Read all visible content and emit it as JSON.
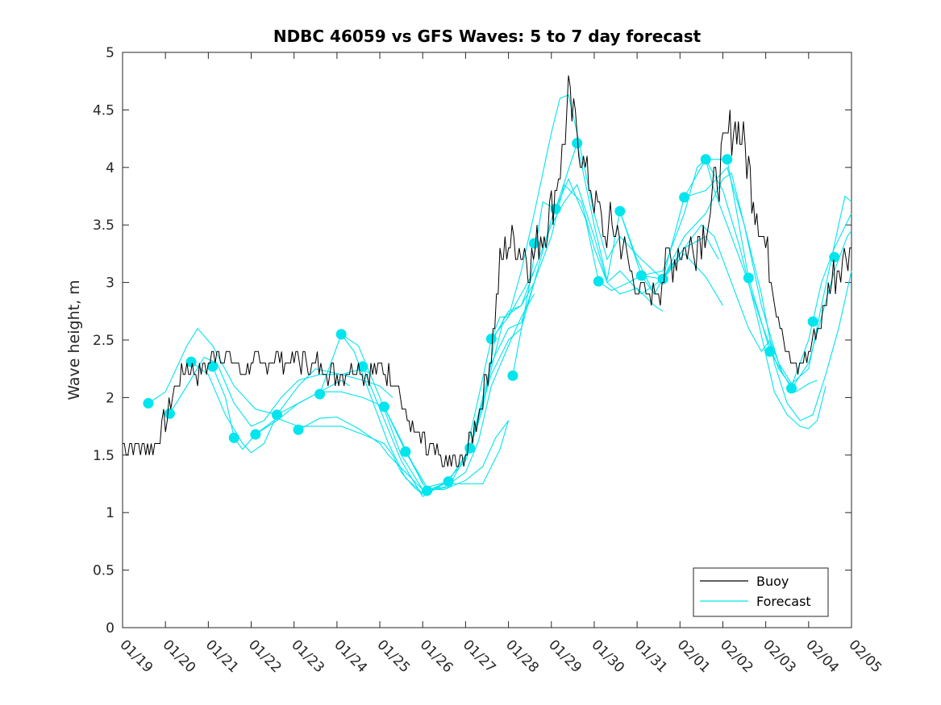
{
  "chart_data": {
    "type": "line",
    "title": "NDBC 46059 vs GFS Waves: 5 to 7 day forecast",
    "xlabel": "",
    "ylabel": "Wave height, m",
    "xlim": [
      0,
      17
    ],
    "ylim": [
      0,
      5
    ],
    "x_tick_labels": [
      "01/19",
      "01/20",
      "01/21",
      "01/22",
      "01/23",
      "01/24",
      "01/25",
      "01/26",
      "01/27",
      "01/28",
      "01/29",
      "01/30",
      "01/31",
      "02/01",
      "02/02",
      "02/03",
      "02/04",
      "02/05"
    ],
    "y_tick_labels": [
      "0",
      "0.5",
      "1",
      "1.5",
      "2",
      "2.5",
      "3",
      "3.5",
      "4",
      "4.5",
      "5"
    ],
    "legend": {
      "location": "bottom-right",
      "entries": [
        "Buoy",
        "Forecast"
      ]
    },
    "colors": {
      "buoy": "#000000",
      "forecast": "#00e5ee"
    },
    "x_units": "days since 01/19 00:00",
    "buoy_series": [
      [
        0,
        1.6
      ],
      [
        0.25,
        1.55
      ],
      [
        0.5,
        1.6
      ],
      [
        0.75,
        1.55
      ],
      [
        1.0,
        1.8
      ],
      [
        1.25,
        2.1
      ],
      [
        1.5,
        2.25
      ],
      [
        1.75,
        2.2
      ],
      [
        2.0,
        2.3
      ],
      [
        2.2,
        2.45
      ],
      [
        2.5,
        2.3
      ],
      [
        2.75,
        2.25
      ],
      [
        3.0,
        2.3
      ],
      [
        3.25,
        2.25
      ],
      [
        3.5,
        2.35
      ],
      [
        3.75,
        2.3
      ],
      [
        4.0,
        2.35
      ],
      [
        4.25,
        2.3
      ],
      [
        4.5,
        2.3
      ],
      [
        4.75,
        2.25
      ],
      [
        5.0,
        2.2
      ],
      [
        5.25,
        2.25
      ],
      [
        5.5,
        2.25
      ],
      [
        5.75,
        2.2
      ],
      [
        6.0,
        2.25
      ],
      [
        6.25,
        2.2
      ],
      [
        6.4,
        2.15
      ],
      [
        6.6,
        1.85
      ],
      [
        6.8,
        1.7
      ],
      [
        7.0,
        1.6
      ],
      [
        7.25,
        1.5
      ],
      [
        7.5,
        1.45
      ],
      [
        7.75,
        1.4
      ],
      [
        8.0,
        1.5
      ],
      [
        8.25,
        1.8
      ],
      [
        8.4,
        2.0
      ],
      [
        8.6,
        2.4
      ],
      [
        8.8,
        3.1
      ],
      [
        9.0,
        3.4
      ],
      [
        9.25,
        3.3
      ],
      [
        9.5,
        3.2
      ],
      [
        9.75,
        3.4
      ],
      [
        10.0,
        3.6
      ],
      [
        10.25,
        4.1
      ],
      [
        10.4,
        4.6
      ],
      [
        10.6,
        4.3
      ],
      [
        10.75,
        4.05
      ],
      [
        11.0,
        3.7
      ],
      [
        11.25,
        3.4
      ],
      [
        11.5,
        3.5
      ],
      [
        11.75,
        3.2
      ],
      [
        12.0,
        2.95
      ],
      [
        12.25,
        2.85
      ],
      [
        12.5,
        3.0
      ],
      [
        12.75,
        3.2
      ],
      [
        13.0,
        3.3
      ],
      [
        13.25,
        3.3
      ],
      [
        13.5,
        3.4
      ],
      [
        13.75,
        3.7
      ],
      [
        14.0,
        4.1
      ],
      [
        14.25,
        4.4
      ],
      [
        14.4,
        4.3
      ],
      [
        14.6,
        4.0
      ],
      [
        14.75,
        3.7
      ],
      [
        15.0,
        3.3
      ],
      [
        15.25,
        2.8
      ],
      [
        15.5,
        2.4
      ],
      [
        15.75,
        2.2
      ],
      [
        16.0,
        2.4
      ],
      [
        16.25,
        2.6
      ],
      [
        16.5,
        3.0
      ],
      [
        16.75,
        3.2
      ],
      [
        17.0,
        3.3
      ]
    ],
    "forecast_markers": [
      [
        0.6,
        1.95
      ],
      [
        1.1,
        1.86
      ],
      [
        1.6,
        2.31
      ],
      [
        2.1,
        2.27
      ],
      [
        2.6,
        1.65
      ],
      [
        3.1,
        1.68
      ],
      [
        3.6,
        1.85
      ],
      [
        4.1,
        1.72
      ],
      [
        4.6,
        2.03
      ],
      [
        5.1,
        2.55
      ],
      [
        5.6,
        2.27
      ],
      [
        6.1,
        1.92
      ],
      [
        6.6,
        1.53
      ],
      [
        7.1,
        1.19
      ],
      [
        7.6,
        1.27
      ],
      [
        8.1,
        1.56
      ],
      [
        8.6,
        2.51
      ],
      [
        9.1,
        2.19
      ],
      [
        9.6,
        3.34
      ],
      [
        10.1,
        3.64
      ],
      [
        10.6,
        4.21
      ],
      [
        11.1,
        3.01
      ],
      [
        11.6,
        3.62
      ],
      [
        12.1,
        3.06
      ],
      [
        12.6,
        3.03
      ],
      [
        13.1,
        3.74
      ],
      [
        13.6,
        4.07
      ],
      [
        14.1,
        4.07
      ],
      [
        14.6,
        3.04
      ],
      [
        15.1,
        2.4
      ],
      [
        15.6,
        2.08
      ],
      [
        16.1,
        2.66
      ],
      [
        16.6,
        3.22
      ]
    ],
    "forecast_series": [
      [
        [
          0.6,
          1.95
        ],
        [
          1.0,
          2.05
        ],
        [
          1.5,
          2.45
        ],
        [
          1.75,
          2.6
        ],
        [
          2.1,
          2.45
        ],
        [
          2.6,
          2.1
        ],
        [
          3.1,
          1.9
        ],
        [
          3.6,
          1.85
        ],
        [
          4.1,
          1.95
        ],
        [
          4.6,
          2.05
        ],
        [
          5.1,
          2.15
        ],
        [
          5.3,
          2.1
        ]
      ],
      [
        [
          1.1,
          1.86
        ],
        [
          1.5,
          2.1
        ],
        [
          1.9,
          2.35
        ],
        [
          2.2,
          2.3
        ],
        [
          2.6,
          1.95
        ],
        [
          3.0,
          1.75
        ],
        [
          3.3,
          1.8
        ],
        [
          3.7,
          2.0
        ],
        [
          4.1,
          2.15
        ],
        [
          4.6,
          2.2
        ],
        [
          5.1,
          2.2
        ],
        [
          5.6,
          2.25
        ],
        [
          5.8,
          2.2
        ]
      ],
      [
        [
          1.6,
          2.31
        ],
        [
          2.0,
          2.2
        ],
        [
          2.4,
          1.85
        ],
        [
          2.8,
          1.6
        ],
        [
          3.0,
          1.52
        ],
        [
          3.3,
          1.6
        ],
        [
          3.6,
          1.85
        ],
        [
          4.1,
          2.1
        ],
        [
          4.5,
          2.25
        ],
        [
          5.1,
          2.2
        ],
        [
          5.6,
          2.15
        ],
        [
          6.0,
          2.1
        ],
        [
          6.3,
          2.0
        ]
      ],
      [
        [
          2.1,
          2.27
        ],
        [
          2.4,
          2.0
        ],
        [
          2.6,
          1.65
        ],
        [
          2.8,
          1.55
        ],
        [
          3.1,
          1.68
        ],
        [
          3.6,
          1.8
        ],
        [
          4.1,
          1.95
        ],
        [
          4.6,
          2.05
        ],
        [
          5.1,
          2.05
        ],
        [
          5.6,
          2.0
        ],
        [
          6.1,
          1.92
        ],
        [
          6.4,
          1.7
        ],
        [
          6.8,
          1.4
        ],
        [
          7.0,
          1.25
        ]
      ],
      [
        [
          3.1,
          1.68
        ],
        [
          3.6,
          1.82
        ],
        [
          4.1,
          1.75
        ],
        [
          4.6,
          1.75
        ],
        [
          5.1,
          1.75
        ],
        [
          5.6,
          1.68
        ],
        [
          6.1,
          1.6
        ],
        [
          6.3,
          1.5
        ],
        [
          6.5,
          1.35
        ],
        [
          6.8,
          1.22
        ],
        [
          7.0,
          1.16
        ]
      ],
      [
        [
          4.1,
          1.72
        ],
        [
          4.6,
          1.82
        ],
        [
          5.0,
          1.83
        ],
        [
          5.5,
          1.73
        ],
        [
          6.0,
          1.6
        ],
        [
          6.2,
          1.5
        ],
        [
          6.6,
          1.35
        ],
        [
          7.0,
          1.2
        ],
        [
          7.5,
          1.2
        ],
        [
          8.0,
          1.28
        ],
        [
          8.4,
          1.4
        ],
        [
          8.7,
          1.65
        ],
        [
          9.0,
          1.8
        ]
      ],
      [
        [
          4.6,
          2.03
        ],
        [
          5.1,
          2.55
        ],
        [
          5.4,
          2.4
        ],
        [
          5.8,
          2.0
        ],
        [
          6.2,
          1.6
        ],
        [
          6.6,
          1.3
        ],
        [
          7.0,
          1.17
        ],
        [
          7.5,
          1.25
        ],
        [
          8.0,
          1.25
        ],
        [
          8.4,
          1.25
        ],
        [
          8.8,
          1.55
        ],
        [
          9.0,
          1.8
        ]
      ],
      [
        [
          5.1,
          2.55
        ],
        [
          5.5,
          2.45
        ],
        [
          6.0,
          2.0
        ],
        [
          6.5,
          1.5
        ],
        [
          7.0,
          1.2
        ],
        [
          7.5,
          1.22
        ],
        [
          8.0,
          1.35
        ],
        [
          8.3,
          1.62
        ],
        [
          8.6,
          2.1
        ],
        [
          9.0,
          2.45
        ],
        [
          9.3,
          2.7
        ],
        [
          9.6,
          2.9
        ]
      ],
      [
        [
          5.6,
          2.27
        ],
        [
          6.0,
          1.9
        ],
        [
          6.5,
          1.45
        ],
        [
          7.0,
          1.14
        ],
        [
          7.5,
          1.25
        ],
        [
          8.0,
          1.45
        ],
        [
          8.4,
          1.9
        ],
        [
          8.7,
          2.55
        ],
        [
          9.0,
          2.75
        ],
        [
          9.3,
          2.8
        ],
        [
          9.6,
          3.0
        ]
      ],
      [
        [
          6.1,
          1.92
        ],
        [
          6.6,
          1.53
        ],
        [
          7.1,
          1.19
        ],
        [
          7.6,
          1.27
        ],
        [
          8.0,
          1.5
        ],
        [
          8.3,
          2.0
        ],
        [
          8.6,
          2.51
        ],
        [
          8.8,
          2.7
        ],
        [
          9.0,
          2.7
        ],
        [
          9.3,
          2.9
        ],
        [
          9.6,
          3.1
        ]
      ],
      [
        [
          6.6,
          1.53
        ],
        [
          7.1,
          1.22
        ],
        [
          7.6,
          1.27
        ],
        [
          8.1,
          1.56
        ],
        [
          8.5,
          2.1
        ],
        [
          8.9,
          2.7
        ],
        [
          9.3,
          2.8
        ],
        [
          9.6,
          3.1
        ],
        [
          10.0,
          3.5
        ],
        [
          10.3,
          3.7
        ],
        [
          10.6,
          3.85
        ],
        [
          11.0,
          3.4
        ],
        [
          11.3,
          3.0
        ],
        [
          11.6,
          2.9
        ],
        [
          12.0,
          2.95
        ],
        [
          12.4,
          2.8
        ],
        [
          12.6,
          2.75
        ]
      ],
      [
        [
          7.1,
          1.19
        ],
        [
          7.6,
          1.22
        ],
        [
          8.1,
          1.56
        ],
        [
          8.6,
          2.3
        ],
        [
          9.0,
          2.6
        ],
        [
          9.3,
          2.65
        ],
        [
          9.6,
          3.0
        ],
        [
          10.0,
          3.55
        ],
        [
          10.4,
          3.9
        ],
        [
          10.8,
          3.55
        ],
        [
          11.1,
          3.01
        ],
        [
          11.4,
          2.93
        ],
        [
          11.8,
          3.0
        ],
        [
          12.1,
          3.06
        ],
        [
          12.4,
          2.9
        ]
      ],
      [
        [
          8.1,
          1.56
        ],
        [
          8.6,
          2.2
        ],
        [
          9.0,
          2.5
        ],
        [
          9.3,
          2.6
        ],
        [
          9.6,
          3.0
        ],
        [
          10.0,
          3.4
        ],
        [
          10.3,
          3.85
        ],
        [
          10.7,
          3.7
        ],
        [
          11.0,
          3.3
        ],
        [
          11.3,
          3.0
        ],
        [
          11.6,
          3.1
        ],
        [
          12.1,
          2.9
        ],
        [
          12.6,
          3.03
        ],
        [
          13.1,
          3.3
        ],
        [
          13.6,
          3.4
        ],
        [
          13.9,
          3.2
        ]
      ],
      [
        [
          8.6,
          2.51
        ],
        [
          9.0,
          2.7
        ],
        [
          9.3,
          3.1
        ],
        [
          9.6,
          3.6
        ],
        [
          10.0,
          4.3
        ],
        [
          10.2,
          4.6
        ],
        [
          10.4,
          4.63
        ],
        [
          10.6,
          4.3
        ],
        [
          11.0,
          3.6
        ],
        [
          11.3,
          3.2
        ],
        [
          11.6,
          3.4
        ],
        [
          12.1,
          3.2
        ],
        [
          12.6,
          3.03
        ],
        [
          13.1,
          3.25
        ],
        [
          13.6,
          3.05
        ],
        [
          14.0,
          2.8
        ]
      ],
      [
        [
          9.1,
          2.19
        ],
        [
          9.5,
          3.0
        ],
        [
          9.8,
          3.7
        ],
        [
          10.1,
          3.64
        ],
        [
          10.6,
          4.21
        ],
        [
          11.0,
          3.5
        ],
        [
          11.3,
          3.02
        ],
        [
          11.6,
          3.62
        ],
        [
          12.0,
          3.2
        ],
        [
          12.4,
          2.9
        ],
        [
          12.7,
          3.1
        ],
        [
          13.1,
          3.3
        ],
        [
          13.5,
          3.5
        ],
        [
          13.8,
          3.4
        ],
        [
          14.2,
          3.0
        ],
        [
          14.6,
          2.6
        ],
        [
          14.9,
          2.4
        ],
        [
          15.1,
          2.5
        ],
        [
          15.4,
          2.2
        ],
        [
          15.7,
          2.05
        ],
        [
          16.0,
          2.12
        ],
        [
          16.2,
          2.15
        ]
      ],
      [
        [
          11.6,
          3.62
        ],
        [
          12.1,
          3.06
        ],
        [
          12.6,
          3.03
        ],
        [
          13.1,
          3.74
        ],
        [
          13.6,
          4.07
        ],
        [
          14.1,
          4.07
        ],
        [
          14.6,
          3.04
        ],
        [
          15.1,
          2.4
        ],
        [
          15.6,
          2.08
        ],
        [
          16.0,
          2.3
        ],
        [
          16.3,
          2.7
        ],
        [
          16.6,
          3.1
        ],
        [
          16.9,
          3.4
        ],
        [
          17.0,
          3.45
        ]
      ],
      [
        [
          12.1,
          3.06
        ],
        [
          12.6,
          3.1
        ],
        [
          13.1,
          3.6
        ],
        [
          13.4,
          4.0
        ],
        [
          13.6,
          4.07
        ],
        [
          13.8,
          3.8
        ],
        [
          14.1,
          3.5
        ],
        [
          14.5,
          3.1
        ],
        [
          14.9,
          2.65
        ],
        [
          15.3,
          2.25
        ],
        [
          15.6,
          2.1
        ],
        [
          16.0,
          2.5
        ],
        [
          16.3,
          3.0
        ],
        [
          16.6,
          3.3
        ],
        [
          17.0,
          3.6
        ]
      ],
      [
        [
          12.6,
          3.03
        ],
        [
          13.1,
          3.4
        ],
        [
          13.6,
          3.6
        ],
        [
          14.0,
          3.9
        ],
        [
          14.2,
          3.95
        ],
        [
          14.5,
          3.5
        ],
        [
          14.9,
          2.8
        ],
        [
          15.3,
          2.3
        ],
        [
          15.6,
          2.12
        ],
        [
          16.0,
          2.25
        ],
        [
          16.3,
          2.8
        ],
        [
          16.7,
          3.5
        ],
        [
          16.85,
          3.75
        ],
        [
          17.0,
          3.7
        ]
      ],
      [
        [
          13.1,
          3.74
        ],
        [
          13.6,
          3.8
        ],
        [
          14.1,
          4.0
        ],
        [
          14.5,
          3.5
        ],
        [
          14.9,
          2.9
        ],
        [
          15.2,
          2.3
        ],
        [
          15.5,
          1.95
        ],
        [
          15.8,
          1.8
        ],
        [
          16.1,
          1.85
        ],
        [
          16.4,
          2.2
        ],
        [
          16.7,
          2.6
        ],
        [
          17.0,
          3.1
        ]
      ],
      [
        [
          13.6,
          4.07
        ],
        [
          14.0,
          3.8
        ],
        [
          14.4,
          3.3
        ],
        [
          14.8,
          2.7
        ],
        [
          15.2,
          2.05
        ],
        [
          15.5,
          1.85
        ],
        [
          15.8,
          1.75
        ],
        [
          16.0,
          1.73
        ],
        [
          16.2,
          1.8
        ],
        [
          16.4,
          2.1
        ]
      ]
    ]
  }
}
